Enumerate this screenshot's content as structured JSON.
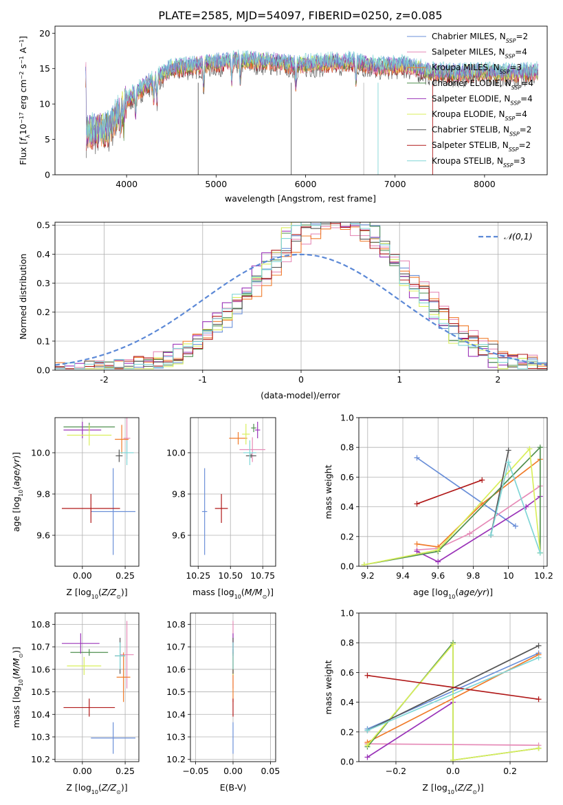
{
  "figure_title": "PLATE=2585, MJD=54097, FIBERID=0250, z=0.085",
  "colors": {
    "chabrier_miles": "#6a8fd8",
    "salpeter_miles": "#e68ab7",
    "kroupa_miles": "#f07b2a",
    "chabrier_elodie": "#4f8f4f",
    "salpeter_elodie": "#9a32b8",
    "kroupa_elodie": "#d9ef5a",
    "chabrier_stelib": "#555555",
    "salpeter_stelib": "#b01818",
    "kroupa_stelib": "#7fd6d6",
    "normal": "#5b88d6"
  },
  "legend": [
    {
      "key": "chabrier_miles",
      "imf": "Chabrier",
      "lib": "MILES",
      "n": "2"
    },
    {
      "key": "salpeter_miles",
      "imf": "Salpeter",
      "lib": "MILES",
      "n": "4"
    },
    {
      "key": "kroupa_miles",
      "imf": "Kroupa",
      "lib": "MILES",
      "n": "3"
    },
    {
      "key": "chabrier_elodie",
      "imf": "Chabrier",
      "lib": "ELODIE",
      "n": "4"
    },
    {
      "key": "salpeter_elodie",
      "imf": "Salpeter",
      "lib": "ELODIE",
      "n": "4"
    },
    {
      "key": "kroupa_elodie",
      "imf": "Kroupa",
      "lib": "ELODIE",
      "n": "4"
    },
    {
      "key": "chabrier_stelib",
      "imf": "Chabrier",
      "lib": "STELIB",
      "n": "2"
    },
    {
      "key": "salpeter_stelib",
      "imf": "Salpeter",
      "lib": "STELIB",
      "n": "2"
    },
    {
      "key": "kroupa_stelib",
      "imf": "Kroupa",
      "lib": "STELIB",
      "n": "3"
    }
  ],
  "order": [
    "chabrier_miles",
    "salpeter_miles",
    "kroupa_miles",
    "chabrier_elodie",
    "salpeter_elodie",
    "kroupa_elodie",
    "chabrier_stelib",
    "salpeter_stelib",
    "kroupa_stelib"
  ],
  "chart_data": [
    {
      "id": "spectrum",
      "type": "line",
      "xlabel": "wavelength [Angstrom, rest frame]",
      "ylabel": "Flux [f_λ10^-17 erg cm^-2 s^-1 A^-1]",
      "xlim": [
        3200,
        8700
      ],
      "ylim": [
        0,
        21
      ],
      "xticks": [
        4000,
        5000,
        6000,
        7000,
        8000
      ],
      "yticks": [
        0,
        5,
        10,
        15,
        20
      ],
      "grid": false,
      "legend_position": "top-right",
      "continuum": {
        "x": [
          3550,
          3800,
          4000,
          4200,
          4500,
          4800,
          5000,
          5300,
          5600,
          5900,
          6200,
          6500,
          6800,
          7100,
          7400,
          7700,
          8000,
          8300,
          8600
        ],
        "y": [
          6.0,
          6.5,
          10.5,
          12.5,
          15.0,
          15.5,
          15.8,
          16.2,
          16.0,
          15.5,
          15.8,
          16.0,
          15.3,
          15.5,
          14.5,
          14.3,
          14.5,
          14.3,
          14.5
        ]
      },
      "absorption_lines": [
        3934,
        3969,
        4102,
        4304,
        4340,
        4861,
        5175,
        5270,
        5890,
        6563
      ]
    },
    {
      "id": "residuals",
      "type": "histogram",
      "xlabel": "(data-model)/error",
      "ylabel": "Normed distribution",
      "xlim": [
        -2.5,
        2.5
      ],
      "ylim": [
        0,
        0.51
      ],
      "xticks": [
        -2,
        -1,
        0,
        1,
        2
      ],
      "yticks": [
        0.0,
        0.1,
        0.2,
        0.3,
        0.4,
        0.5
      ],
      "grid": true,
      "legend_position": "top-right",
      "legend": [
        {
          "label": "𝒩(0,1)",
          "key": "normal"
        }
      ],
      "bins": {
        "start": -2.5,
        "width": 0.1,
        "count": 50
      },
      "normal": {
        "mu": 0,
        "sigma": 1
      }
    },
    {
      "id": "age_vs_Z",
      "type": "errorbar",
      "xlabel": "Z [log₁₀(Z/Z☉)]",
      "ylabel": "age  [log₁₀(age/yr)]",
      "xlim": [
        -0.16,
        0.33
      ],
      "ylim": [
        9.45,
        10.17
      ],
      "xticks": [
        0.0,
        0.25
      ],
      "xticklabels": [
        "0.00",
        "0.25"
      ],
      "yticks": [
        9.6,
        9.8,
        10.0
      ],
      "grid": true,
      "points": {
        "chabrier_miles": {
          "x": 0.18,
          "y": 9.715,
          "xerr": 0.13,
          "yerr": 0.21
        },
        "salpeter_miles": {
          "x": 0.26,
          "y": 10.07,
          "xerr": 0.02,
          "yerr": 0.1
        },
        "kroupa_miles": {
          "x": 0.23,
          "y": 10.065,
          "xerr": 0.04,
          "yerr": 0.07
        },
        "chabrier_elodie": {
          "x": 0.04,
          "y": 10.125,
          "xerr": 0.15,
          "yerr": 0.02
        },
        "salpeter_elodie": {
          "x": 0.0,
          "y": 10.11,
          "xerr": 0.11,
          "yerr": 0.04
        },
        "kroupa_elodie": {
          "x": 0.04,
          "y": 10.085,
          "xerr": 0.13,
          "yerr": 0.05
        },
        "chabrier_stelib": {
          "x": 0.215,
          "y": 9.985,
          "xerr": 0.02,
          "yerr": 0.03
        },
        "salpeter_stelib": {
          "x": 0.05,
          "y": 9.73,
          "xerr": 0.17,
          "yerr": 0.07
        },
        "kroupa_stelib": {
          "x": 0.26,
          "y": 10.0,
          "xerr": 0.04,
          "yerr": 0.06
        }
      }
    },
    {
      "id": "age_vs_mass",
      "type": "errorbar",
      "xlabel": "mass [log₁₀(M/M☉)]",
      "ylabel": "",
      "xlim": [
        10.19,
        10.85
      ],
      "ylim": [
        9.45,
        10.17
      ],
      "xticks": [
        10.25,
        10.5,
        10.75
      ],
      "xticklabels": [
        "10.25",
        "10.50",
        "10.75"
      ],
      "yticks": [
        9.6,
        9.8,
        10.0
      ],
      "grid": true,
      "points": {
        "chabrier_miles": {
          "x": 10.3,
          "y": 9.715,
          "xerr": 0.02,
          "yerr": 0.21
        },
        "salpeter_miles": {
          "x": 10.67,
          "y": 10.015,
          "xerr": 0.1,
          "yerr": 0.06
        },
        "kroupa_miles": {
          "x": 10.56,
          "y": 10.07,
          "xerr": 0.07,
          "yerr": 0.03
        },
        "chabrier_elodie": {
          "x": 10.68,
          "y": 10.12,
          "xerr": 0.02,
          "yerr": 0.02
        },
        "salpeter_elodie": {
          "x": 10.71,
          "y": 10.11,
          "xerr": 0.02,
          "yerr": 0.04
        },
        "kroupa_elodie": {
          "x": 10.62,
          "y": 10.09,
          "xerr": 0.03,
          "yerr": 0.05
        },
        "chabrier_stelib": {
          "x": 10.66,
          "y": 9.985,
          "xerr": 0.04,
          "yerr": 0.01
        },
        "salpeter_stelib": {
          "x": 10.43,
          "y": 9.73,
          "xerr": 0.05,
          "yerr": 0.07
        },
        "kroupa_stelib": {
          "x": 10.65,
          "y": 10.0,
          "xerr": 0.05,
          "yerr": 0.06
        }
      }
    },
    {
      "id": "mass_weight_vs_age",
      "type": "line",
      "xlabel": "age  [log₁₀(age/yr)]",
      "ylabel": "mass weight",
      "xlim": [
        9.15,
        10.22
      ],
      "ylim": [
        0,
        1
      ],
      "xticks": [
        9.2,
        9.4,
        9.6,
        9.8,
        10.0,
        10.2
      ],
      "yticks": [
        0.0,
        0.2,
        0.4,
        0.6,
        0.8,
        1.0
      ],
      "grid": true,
      "series": {
        "chabrier_miles": {
          "x": [
            9.48,
            10.04
          ],
          "y": [
            0.73,
            0.27
          ]
        },
        "salpeter_miles": {
          "x": [
            9.48,
            9.6,
            9.78,
            10.18
          ],
          "y": [
            0.11,
            0.12,
            0.22,
            0.54
          ]
        },
        "kroupa_miles": {
          "x": [
            9.48,
            9.6,
            9.85,
            10.18
          ],
          "y": [
            0.15,
            0.13,
            0.42,
            0.72
          ]
        },
        "chabrier_elodie": {
          "x": [
            9.18,
            9.6,
            10.18,
            10.18
          ],
          "y": [
            0.01,
            0.1,
            0.8,
            0.09
          ]
        },
        "salpeter_elodie": {
          "x": [
            9.48,
            9.6,
            10.1,
            10.18
          ],
          "y": [
            0.1,
            0.03,
            0.4,
            0.47
          ]
        },
        "kroupa_elodie": {
          "x": [
            9.18,
            9.6,
            10.12,
            10.18
          ],
          "y": [
            0.01,
            0.11,
            0.79,
            0.09
          ]
        },
        "chabrier_stelib": {
          "x": [
            9.9,
            10.0
          ],
          "y": [
            0.21,
            0.78
          ]
        },
        "salpeter_stelib": {
          "x": [
            9.48,
            9.85
          ],
          "y": [
            0.42,
            0.58
          ]
        },
        "kroupa_stelib": {
          "x": [
            9.9,
            10.0,
            10.18
          ],
          "y": [
            0.21,
            0.7,
            0.09
          ]
        }
      }
    },
    {
      "id": "mass_vs_Z",
      "type": "errorbar",
      "xlabel": "Z [log₁₀(Z/Z☉)]",
      "ylabel": "mass [log₁₀(M/M☉)]",
      "xlim": [
        -0.16,
        0.33
      ],
      "ylim": [
        10.19,
        10.85
      ],
      "xticks": [
        0.0,
        0.25
      ],
      "xticklabels": [
        "0.00",
        "0.25"
      ],
      "yticks": [
        10.2,
        10.3,
        10.4,
        10.5,
        10.6,
        10.7,
        10.8
      ],
      "grid": true,
      "points": {
        "chabrier_miles": {
          "x": 0.18,
          "y": 10.295,
          "xerr": 0.13,
          "yerr": 0.07
        },
        "salpeter_miles": {
          "x": 0.26,
          "y": 10.665,
          "xerr": 0.04,
          "yerr": 0.15
        },
        "kroupa_miles": {
          "x": 0.24,
          "y": 10.565,
          "xerr": 0.04,
          "yerr": 0.11
        },
        "chabrier_elodie": {
          "x": 0.04,
          "y": 10.675,
          "xerr": 0.11,
          "yerr": 0.015
        },
        "salpeter_elodie": {
          "x": -0.01,
          "y": 10.715,
          "xerr": 0.11,
          "yerr": 0.045
        },
        "kroupa_elodie": {
          "x": 0.01,
          "y": 10.615,
          "xerr": 0.1,
          "yerr": 0.04
        },
        "chabrier_stelib": {
          "x": 0.22,
          "y": 10.66,
          "xerr": 0.03,
          "yerr": 0.08
        },
        "salpeter_stelib": {
          "x": 0.04,
          "y": 10.43,
          "xerr": 0.15,
          "yerr": 0.04
        },
        "kroupa_stelib": {
          "x": 0.22,
          "y": 10.66,
          "xerr": 0.03,
          "yerr": 0.06
        }
      }
    },
    {
      "id": "mass_vs_ebv",
      "type": "errorbar",
      "xlabel": "E(B-V)",
      "ylabel": "",
      "xlim": [
        -0.057,
        0.057
      ],
      "ylim": [
        10.19,
        10.85
      ],
      "xticks": [
        -0.05,
        0.0,
        0.05
      ],
      "xticklabels": [
        "−0.05",
        "0.00",
        "0.05"
      ],
      "yticks": [
        10.2,
        10.3,
        10.4,
        10.5,
        10.6,
        10.7,
        10.8
      ],
      "grid": true,
      "points": {
        "chabrier_miles": {
          "x": 0,
          "y": 10.295,
          "xerr": 0,
          "yerr": 0.07
        },
        "salpeter_miles": {
          "x": 0,
          "y": 10.665,
          "xerr": 0,
          "yerr": 0.15
        },
        "kroupa_miles": {
          "x": 0,
          "y": 10.565,
          "xerr": 0,
          "yerr": 0.11
        },
        "chabrier_elodie": {
          "x": 0,
          "y": 10.675,
          "xerr": 0,
          "yerr": 0.015
        },
        "salpeter_elodie": {
          "x": 0,
          "y": 10.715,
          "xerr": 0,
          "yerr": 0.045
        },
        "kroupa_elodie": {
          "x": 0,
          "y": 10.615,
          "xerr": 0,
          "yerr": 0.04
        },
        "chabrier_stelib": {
          "x": 0,
          "y": 10.66,
          "xerr": 0,
          "yerr": 0.08
        },
        "salpeter_stelib": {
          "x": 0,
          "y": 10.43,
          "xerr": 0,
          "yerr": 0.04
        },
        "kroupa_stelib": {
          "x": 0,
          "y": 10.66,
          "xerr": 0,
          "yerr": 0.06
        }
      }
    },
    {
      "id": "mass_weight_vs_Z",
      "type": "line",
      "xlabel": "Z [log₁₀(Z/Z☉)]",
      "ylabel": "mass weight",
      "xlim": [
        -0.33,
        0.33
      ],
      "ylim": [
        0,
        1
      ],
      "xticks": [
        -0.2,
        0.0,
        0.2
      ],
      "xticklabels": [
        "−0.2",
        "0.0",
        "0.2"
      ],
      "yticks": [
        0.0,
        0.2,
        0.4,
        0.6,
        0.8,
        1.0
      ],
      "grid": true,
      "series": {
        "chabrier_miles": {
          "x": [
            -0.3,
            0.3
          ],
          "y": [
            0.22,
            0.73
          ]
        },
        "salpeter_miles": {
          "x": [
            -0.3,
            0.3
          ],
          "y": [
            0.12,
            0.11
          ]
        },
        "kroupa_miles": {
          "x": [
            -0.3,
            0.3
          ],
          "y": [
            0.13,
            0.72
          ]
        },
        "chabrier_elodie": {
          "x": [
            -0.3,
            0.0,
            0.0,
            0.3
          ],
          "y": [
            0.1,
            0.8,
            0.01,
            0.09
          ]
        },
        "salpeter_elodie": {
          "x": [
            -0.3,
            0.0
          ],
          "y": [
            0.03,
            0.4
          ]
        },
        "kroupa_elodie": {
          "x": [
            -0.3,
            0.0,
            0.0,
            0.3
          ],
          "y": [
            0.11,
            0.79,
            0.01,
            0.09
          ]
        },
        "chabrier_stelib": {
          "x": [
            -0.3,
            0.3
          ],
          "y": [
            0.21,
            0.78
          ]
        },
        "salpeter_stelib": {
          "x": [
            -0.3,
            0.3
          ],
          "y": [
            0.58,
            0.42
          ]
        },
        "kroupa_stelib": {
          "x": [
            -0.3,
            0.3
          ],
          "y": [
            0.21,
            0.7
          ]
        }
      }
    }
  ]
}
